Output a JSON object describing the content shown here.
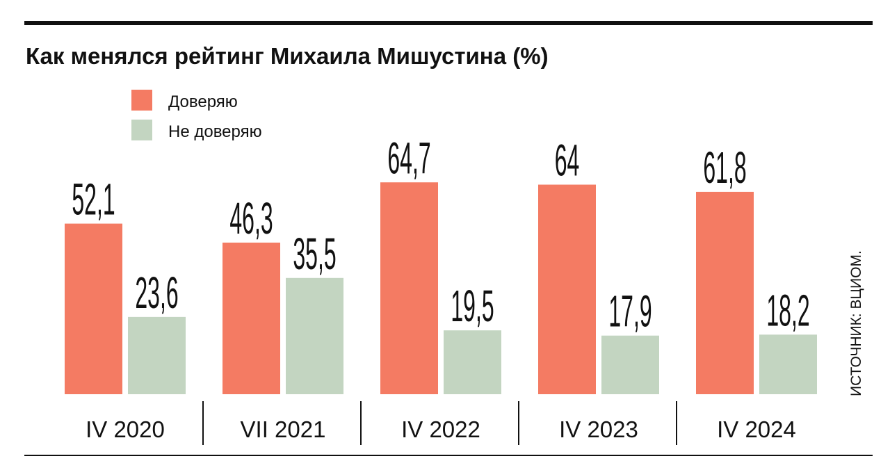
{
  "chart_data": {
    "type": "bar",
    "title": "Как менялся рейтинг Михаила Мишустина (%)",
    "categories": [
      "IV 2020",
      "VII 2021",
      "IV 2022",
      "IV 2023",
      "IV 2024"
    ],
    "series": [
      {
        "name": "Доверяю",
        "color": "#F47B63",
        "values": [
          52.1,
          46.3,
          64.7,
          64,
          61.8
        ],
        "labels": [
          "52,1",
          "46,3",
          "64,7",
          "64",
          "61,8"
        ]
      },
      {
        "name": "Не доверяю",
        "color": "#C3D5C1",
        "values": [
          23.6,
          35.5,
          19.5,
          17.9,
          18.2
        ],
        "labels": [
          "23,6",
          "35,5",
          "19,5",
          "17,9",
          "18,2"
        ]
      }
    ],
    "legend": "top-left",
    "grid": false,
    "ylim": [
      0,
      70
    ],
    "source": "ИСТОЧНИК: ВЦИОМ."
  }
}
